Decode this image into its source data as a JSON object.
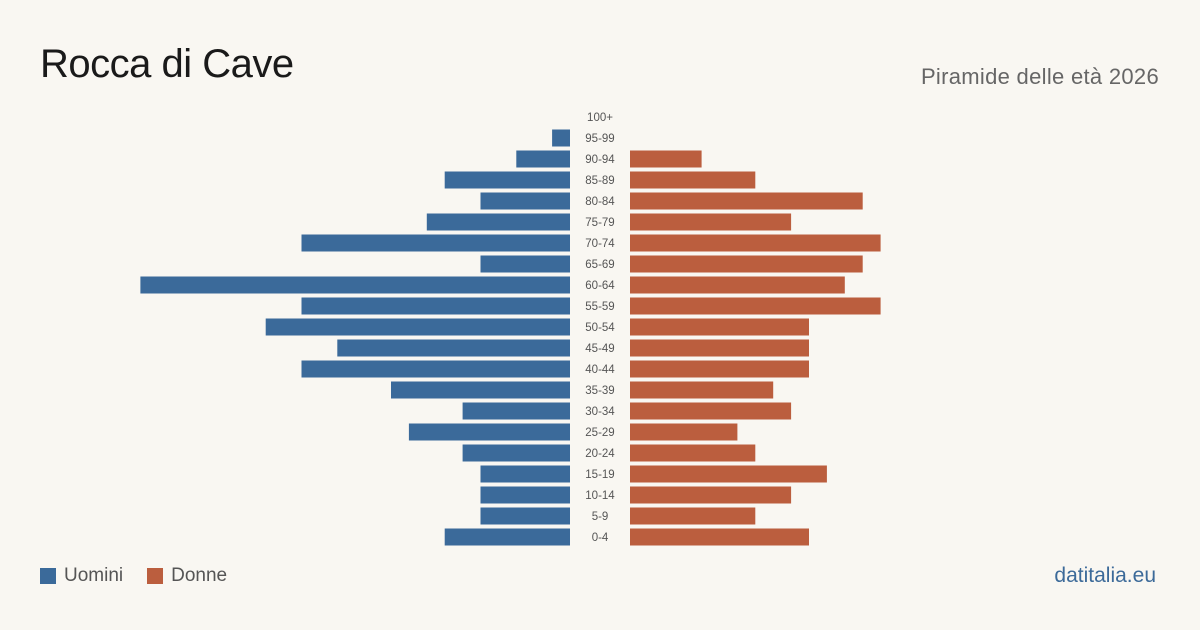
{
  "header": {
    "title": "Rocca di Cave",
    "subtitle": "Piramide delle età 2026"
  },
  "legend": {
    "men_label": "Uomini",
    "women_label": "Donne"
  },
  "footer": {
    "brand": "datitalia.eu"
  },
  "colors": {
    "men": "#3b6a9a",
    "women": "#bb5e3e"
  },
  "chart_data": {
    "type": "bar",
    "orientation": "horizontal-pyramid",
    "categories": [
      "100+",
      "95-99",
      "90-94",
      "85-89",
      "80-84",
      "75-79",
      "70-74",
      "65-69",
      "60-64",
      "55-59",
      "50-54",
      "45-49",
      "40-44",
      "35-39",
      "30-34",
      "25-29",
      "20-24",
      "15-19",
      "10-14",
      "5-9",
      "0-4"
    ],
    "series": [
      {
        "name": "Uomini",
        "values": [
          0,
          1,
          3,
          7,
          5,
          8,
          15,
          5,
          24,
          15,
          17,
          13,
          15,
          10,
          6,
          9,
          6,
          5,
          5,
          5,
          7
        ]
      },
      {
        "name": "Donne",
        "values": [
          0,
          0,
          4,
          7,
          13,
          9,
          14,
          13,
          12,
          14,
          10,
          10,
          10,
          8,
          9,
          6,
          7,
          11,
          9,
          7,
          10
        ]
      }
    ],
    "legend_position": "bottom-left",
    "grid": false
  }
}
